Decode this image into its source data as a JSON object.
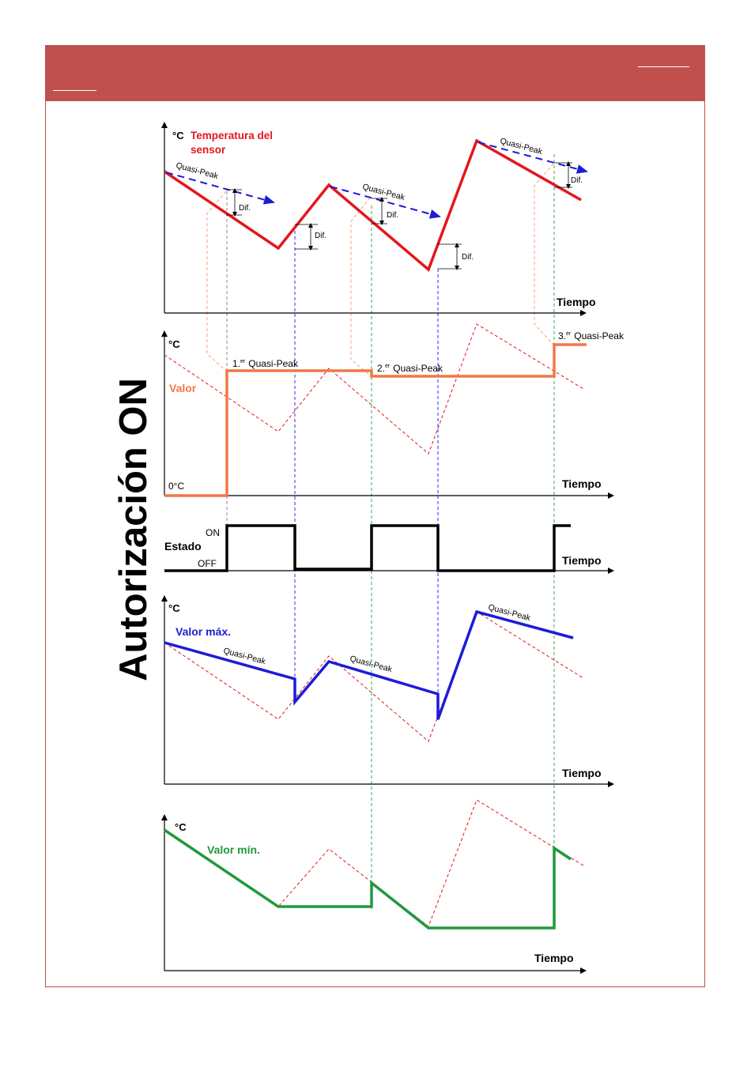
{
  "page": {
    "side_title": "Autorización ON"
  },
  "panel_sensor": {
    "y_unit": "°C",
    "series_label_line1": "Temperatura del",
    "series_label_line2": "sensor",
    "x_label": "Tiempo",
    "quasi_peak": "Quasi-Peak",
    "dif": "Dif."
  },
  "panel_valor": {
    "y_unit": "°C",
    "series_label": "Valor",
    "zero_label": "0°C",
    "x_label": "Tiempo",
    "qp1_num": "1.",
    "qp1_sup": "er",
    "qp2_num": "2.",
    "qp2_sup": "er",
    "qp3_num": "3.",
    "qp3_sup": "er",
    "qp_text": "Quasi-Peak"
  },
  "panel_estado": {
    "series_label": "Estado",
    "on_label": "ON",
    "off_label": "OFF",
    "x_label": "Tiempo"
  },
  "panel_max": {
    "y_unit": "°C",
    "series_label": "Valor máx.",
    "quasi_peak": "Quasi-Peak",
    "x_label": "Tiempo"
  },
  "panel_min": {
    "y_unit": "°C",
    "series_label": "Valor mín.",
    "x_label": "Tiempo"
  },
  "colors": {
    "header": "#c0504d",
    "sensor": "#e3171c",
    "valor": "#f07847",
    "estado": "#000000",
    "max": "#1c1cd6",
    "min": "#1f9a3c",
    "guide_orange": "#f4a27e",
    "guide_blue": "#2b2bff",
    "guide_green": "#3aa84f"
  }
}
